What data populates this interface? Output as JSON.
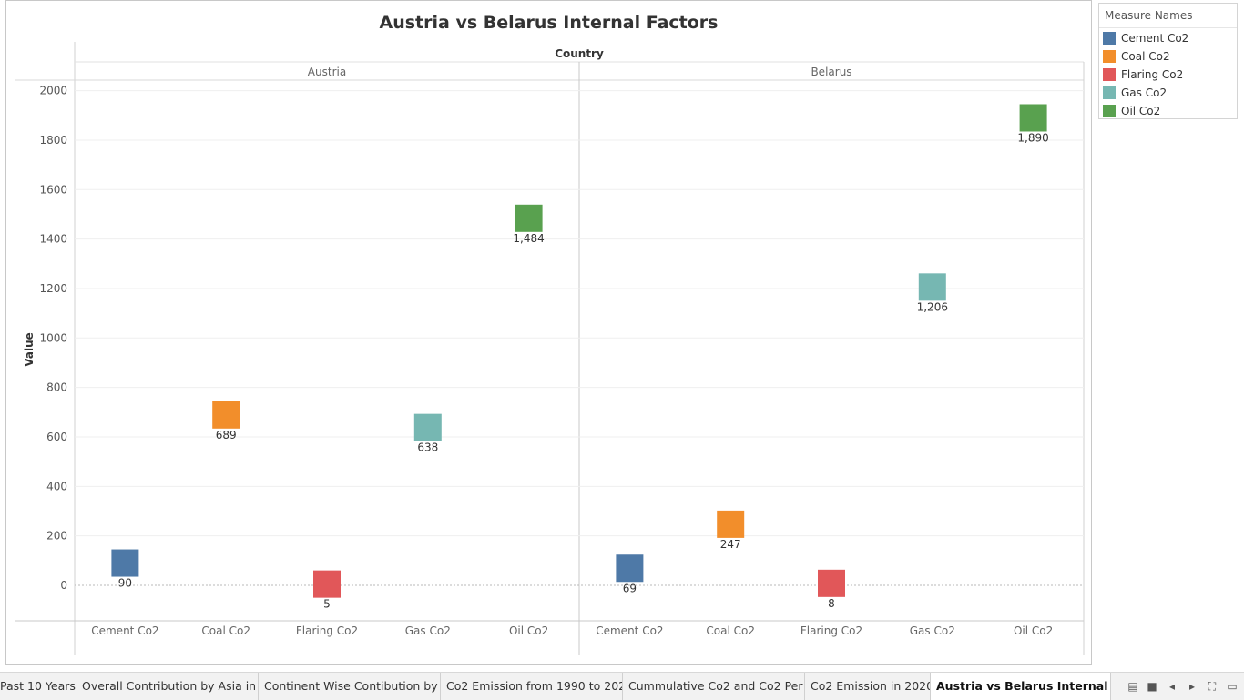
{
  "chart_data": {
    "type": "scatter",
    "title": "Austria vs Belarus Internal Factors",
    "column_header": "Country",
    "ylabel": "Value",
    "ylim": [
      -150,
      2050
    ],
    "yticks": [
      0,
      200,
      400,
      600,
      800,
      1000,
      1200,
      1400,
      1600,
      1800,
      2000
    ],
    "panels": [
      "Austria",
      "Belarus"
    ],
    "categories": [
      "Cement Co2",
      "Coal Co2",
      "Flaring Co2",
      "Gas Co2",
      "Oil Co2"
    ],
    "colors": [
      "#4e79a7",
      "#f28e2b",
      "#e15759",
      "#76b7b2",
      "#59a14f"
    ],
    "values": {
      "Austria": [
        90,
        689,
        5,
        638,
        1484
      ],
      "Belarus": [
        69,
        247,
        8,
        1206,
        1890
      ]
    },
    "value_labels": {
      "Austria": [
        "90",
        "689",
        "5",
        "638",
        "1,484"
      ],
      "Belarus": [
        "69",
        "247",
        "8",
        "1,206",
        "1,890"
      ]
    },
    "legend": {
      "title": "Measure Names",
      "position": "right",
      "items": [
        "Cement Co2",
        "Coal Co2",
        "Flaring Co2",
        "Gas Co2",
        "Oil Co2"
      ]
    }
  },
  "tabs": [
    {
      "label": "Past 10 Years",
      "active": false
    },
    {
      "label": "Overall Contribution by Asia in C...",
      "active": false
    },
    {
      "label": "Continent Wise Contibution by I...",
      "active": false
    },
    {
      "label": "Co2 Emission from 1990 to 202...",
      "active": false
    },
    {
      "label": "Cummulative Co2 and Co2 Per ...",
      "active": false
    },
    {
      "label": "Co2 Emission in 2020",
      "active": false
    },
    {
      "label": "Austria vs Belarus Internal Fac...",
      "active": true
    }
  ],
  "tab_controls": [
    {
      "icon": "grid-view-icon",
      "glyph": "▤"
    },
    {
      "icon": "filmstrip-view-icon",
      "glyph": "■"
    },
    {
      "icon": "previous-tab-icon",
      "glyph": "◂"
    },
    {
      "icon": "next-tab-icon",
      "glyph": "▸"
    },
    {
      "icon": "fullscreen-icon",
      "glyph": "⛶"
    },
    {
      "icon": "presentation-icon",
      "glyph": "▭"
    }
  ]
}
